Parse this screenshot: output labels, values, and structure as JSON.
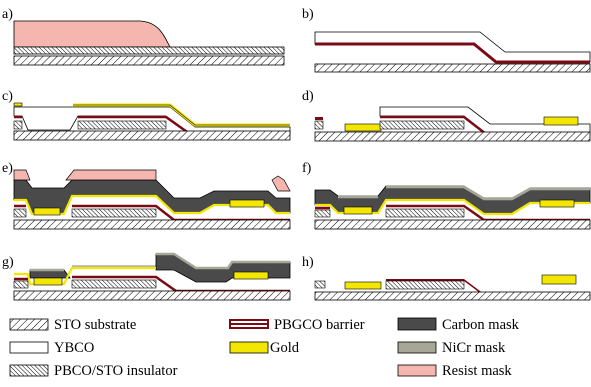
{
  "panels": [
    {
      "label": "a)",
      "steps": [
        "STO substrate",
        "PBCO/STO insulator",
        "Resist mask"
      ]
    },
    {
      "label": "b)",
      "steps": [
        "STO substrate",
        "PBGCO barrier",
        "YBCO"
      ]
    },
    {
      "label": "c)",
      "steps": [
        "STO substrate",
        "PBCO/STO insulator",
        "YBCO",
        "PBGCO barrier",
        "Gold"
      ]
    },
    {
      "label": "d)",
      "steps": [
        "STO substrate",
        "PBCO/STO insulator",
        "YBCO",
        "PBGCO barrier",
        "Gold"
      ]
    },
    {
      "label": "e)",
      "steps": [
        "STO substrate",
        "PBCO/STO insulator",
        "YBCO",
        "Gold",
        "Carbon mask",
        "Resist mask"
      ]
    },
    {
      "label": "f)",
      "steps": [
        "STO substrate",
        "PBCO/STO insulator",
        "YBCO",
        "Gold",
        "Carbon mask",
        "NiCr mask"
      ]
    },
    {
      "label": "g)",
      "steps": [
        "STO substrate",
        "PBCO/STO insulator",
        "YBCO",
        "Gold",
        "Carbon mask",
        "NiCr mask"
      ]
    },
    {
      "label": "h)",
      "steps": [
        "STO substrate",
        "PBCO/STO insulator",
        "YBCO",
        "PBGCO barrier",
        "Gold"
      ]
    }
  ],
  "legend": [
    {
      "key": "sto",
      "label": "STO substrate",
      "color": "#ffffff",
      "pattern": "diag"
    },
    {
      "key": "pbgco",
      "label": "PBGCO barrier",
      "color": "#7a0a14"
    },
    {
      "key": "carbon",
      "label": "Carbon mask",
      "color": "#4a4a4a"
    },
    {
      "key": "ybco",
      "label": "YBCO",
      "color": "#ffffff"
    },
    {
      "key": "gold",
      "label": "Gold",
      "color": "#f3e600"
    },
    {
      "key": "nicr",
      "label": "NiCr mask",
      "color": "#a7a797"
    },
    {
      "key": "insulator",
      "label": "PBCO/STO insulator",
      "color": "#ffffff",
      "pattern": "diag-dense"
    },
    {
      "key": "resist",
      "label": "Resist mask",
      "color": "#f5b6b0"
    }
  ]
}
